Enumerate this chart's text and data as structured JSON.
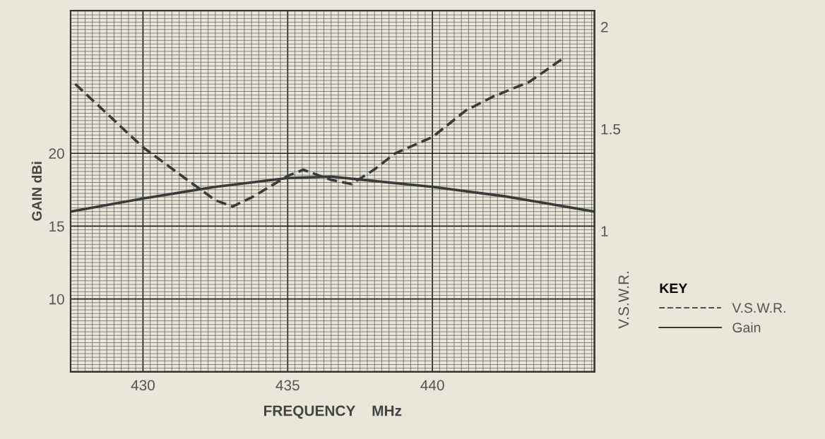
{
  "chart_data": {
    "type": "line",
    "xlabel": "FREQUENCY    MHz",
    "ylabel": "GAIN dBi",
    "y2label": "V.S.W.R.",
    "legend_title": "KEY",
    "xlim": [
      427.5,
      445.6
    ],
    "xticks": [
      430,
      435,
      440
    ],
    "ylim": [
      5,
      29.8
    ],
    "yticks": [
      10,
      15,
      20
    ],
    "y2lim": [
      0.31,
      2.08
    ],
    "y2ticks": [
      1,
      1.5,
      2
    ],
    "grid": true,
    "legend": "right",
    "series": [
      {
        "name": "V.S.W.R.",
        "axis": "y2",
        "line_style": "dashed",
        "color": "#3a3a3a",
        "x": [
          427.66,
          430,
          431.63,
          432.51,
          433.1,
          433.83,
          435,
          435.54,
          436.51,
          437.2,
          437.98,
          438.71,
          440,
          441.15,
          442.12,
          443.34,
          444.56
        ],
        "values": [
          1.72,
          1.41,
          1.24,
          1.15,
          1.12,
          1.17,
          1.27,
          1.3,
          1.25,
          1.23,
          1.3,
          1.38,
          1.46,
          1.59,
          1.66,
          1.73,
          1.85
        ]
      },
      {
        "name": "Gain",
        "axis": "y",
        "line_style": "solid",
        "color": "#3a3a3a",
        "x": [
          427.5,
          430,
          432.5,
          435,
          436.5,
          437.5,
          440,
          442.5,
          445.6
        ],
        "values": [
          16.0,
          16.9,
          17.7,
          18.3,
          18.4,
          18.2,
          17.7,
          17.05,
          16.0
        ]
      }
    ]
  }
}
